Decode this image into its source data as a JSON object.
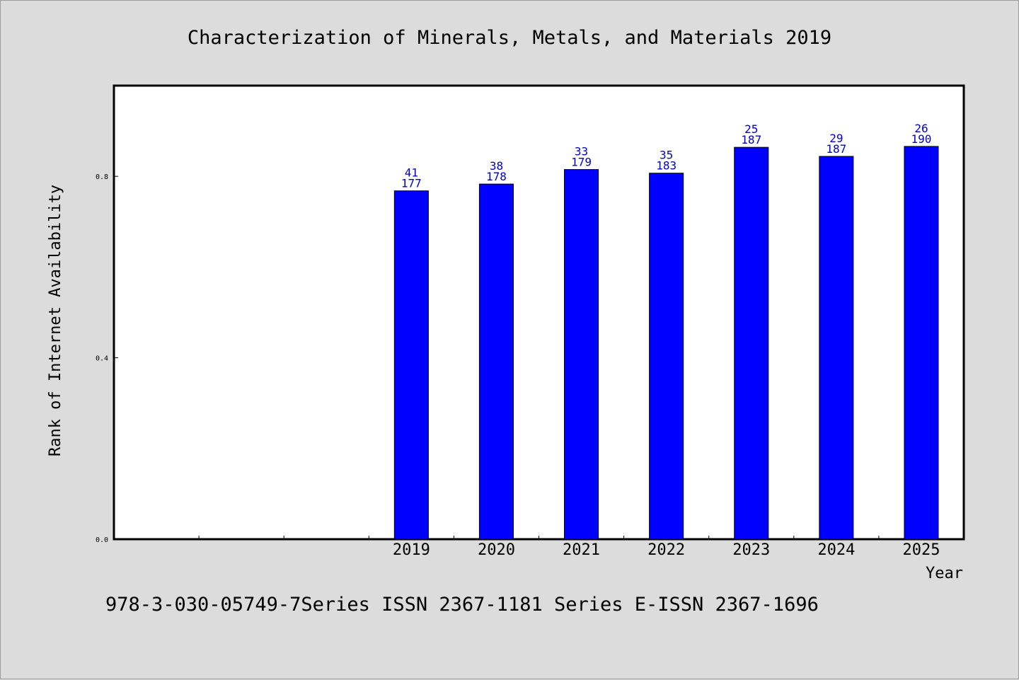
{
  "chart_data": {
    "type": "bar",
    "title": "Characterization of Minerals, Metals, and Materials 2019",
    "xlabel": "Year",
    "ylabel": "Rank of Internet Availability",
    "slot_count": 10,
    "categories": [
      "2019",
      "2020",
      "2021",
      "2022",
      "2023",
      "2024",
      "2025"
    ],
    "values": [
      0.768,
      0.783,
      0.815,
      0.807,
      0.864,
      0.844,
      0.866
    ],
    "bar_labels_top": [
      "41",
      "38",
      "33",
      "35",
      "25",
      "29",
      "26"
    ],
    "bar_labels_bottom": [
      "177",
      "178",
      "179",
      "183",
      "187",
      "187",
      "190"
    ],
    "ylim": [
      0,
      1.0
    ],
    "yticks": [
      "0.0",
      "0.4",
      "0.8"
    ],
    "ytick_values": [
      0,
      0.4,
      0.8
    ],
    "grid": false,
    "colors": {
      "bar": "#0000ff",
      "bar_outline": "#000000",
      "data_label": "#0000cc"
    }
  },
  "footer": "978-3-030-05749-7Series ISSN 2367-1181 Series E-ISSN 2367-1696"
}
